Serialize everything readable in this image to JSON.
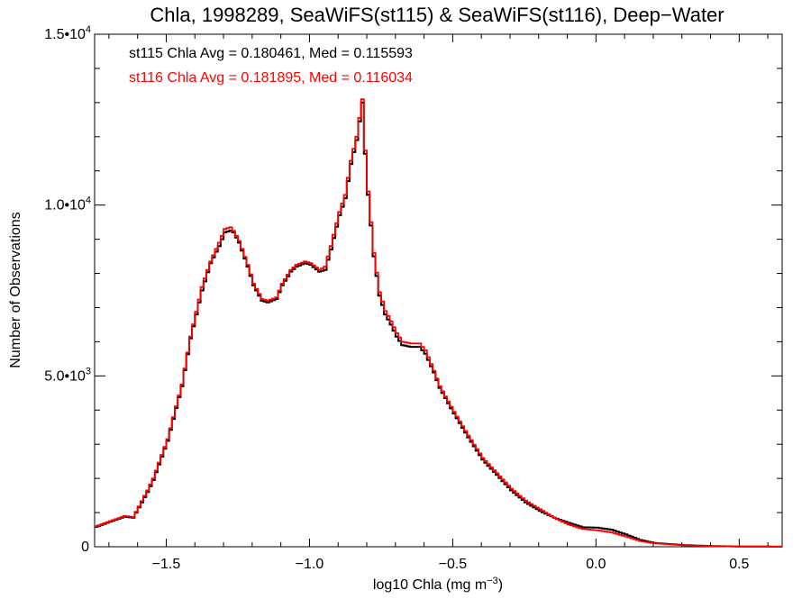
{
  "chart_data": {
    "type": "line",
    "title": "Chla, 1998289, SeaWiFS(st115) & SeaWiFS(st116), Deep−Water",
    "xlabel": "log10 Chla (mg m",
    "xlabel_sup": "−3",
    "xlabel_end": ")",
    "ylabel": "Number of Observations",
    "xlim": [
      -1.75,
      0.65
    ],
    "ylim": [
      0,
      15000
    ],
    "x_ticks": [
      {
        "value": -1.5,
        "label": "−1.5"
      },
      {
        "value": -1.0,
        "label": "−1.0"
      },
      {
        "value": -0.5,
        "label": "−0.5"
      },
      {
        "value": 0.0,
        "label": "0.0"
      },
      {
        "value": 0.5,
        "label": "0.5"
      }
    ],
    "y_ticks": [
      {
        "value": 0,
        "label": "0",
        "sup": ""
      },
      {
        "value": 5000,
        "label": "5.0•10",
        "sup": "3"
      },
      {
        "value": 10000,
        "label": "1.0•10",
        "sup": "4"
      },
      {
        "value": 15000,
        "label": "1.5•10",
        "sup": "4"
      }
    ],
    "annotations": [
      {
        "text": "st115 Chla Avg = 0.180461, Med = 0.115593",
        "color": "#000000"
      },
      {
        "text": "st116 Chla Avg = 0.181895, Med = 0.116034",
        "color": "#ff0000"
      }
    ],
    "grid": false,
    "series": [
      {
        "name": "st115",
        "color": "#000000",
        "x": [
          -1.75,
          -1.7,
          -1.65,
          -1.62,
          -1.6,
          -1.57,
          -1.55,
          -1.5,
          -1.45,
          -1.42,
          -1.38,
          -1.35,
          -1.32,
          -1.3,
          -1.28,
          -1.27,
          -1.25,
          -1.22,
          -1.2,
          -1.17,
          -1.15,
          -1.12,
          -1.1,
          -1.07,
          -1.05,
          -1.02,
          -1.0,
          -0.97,
          -0.95,
          -0.93,
          -0.9,
          -0.88,
          -0.86,
          -0.84,
          -0.83,
          -0.82,
          -0.81,
          -0.8,
          -0.78,
          -0.76,
          -0.74,
          -0.72,
          -0.7,
          -0.68,
          -0.65,
          -0.62,
          -0.6,
          -0.57,
          -0.55,
          -0.5,
          -0.45,
          -0.4,
          -0.35,
          -0.3,
          -0.25,
          -0.2,
          -0.15,
          -0.1,
          -0.05,
          0.0,
          0.05,
          0.1,
          0.15,
          0.2,
          0.3,
          0.4,
          0.5,
          0.65
        ],
        "y": [
          580,
          730,
          880,
          850,
          1150,
          1600,
          1950,
          3100,
          4700,
          6100,
          7500,
          8300,
          8800,
          9200,
          9250,
          9200,
          8900,
          8200,
          7650,
          7200,
          7150,
          7250,
          7650,
          8050,
          8200,
          8300,
          8250,
          8050,
          8100,
          8700,
          9700,
          10200,
          11200,
          11900,
          12450,
          13000,
          11500,
          10300,
          8500,
          7350,
          6800,
          6500,
          6150,
          5900,
          5850,
          5850,
          5650,
          5100,
          4650,
          3900,
          3200,
          2550,
          2100,
          1650,
          1300,
          1050,
          850,
          700,
          570,
          560,
          500,
          360,
          200,
          110,
          50,
          20,
          8,
          2
        ]
      },
      {
        "name": "st116",
        "color": "#ff0000",
        "x": [
          -1.75,
          -1.7,
          -1.65,
          -1.62,
          -1.6,
          -1.57,
          -1.55,
          -1.5,
          -1.45,
          -1.42,
          -1.38,
          -1.35,
          -1.32,
          -1.3,
          -1.28,
          -1.27,
          -1.25,
          -1.22,
          -1.2,
          -1.17,
          -1.15,
          -1.12,
          -1.1,
          -1.07,
          -1.05,
          -1.02,
          -1.0,
          -0.97,
          -0.95,
          -0.93,
          -0.9,
          -0.88,
          -0.86,
          -0.84,
          -0.83,
          -0.82,
          -0.81,
          -0.8,
          -0.78,
          -0.76,
          -0.74,
          -0.72,
          -0.7,
          -0.68,
          -0.65,
          -0.62,
          -0.6,
          -0.57,
          -0.55,
          -0.5,
          -0.45,
          -0.4,
          -0.35,
          -0.3,
          -0.25,
          -0.2,
          -0.15,
          -0.1,
          -0.05,
          0.0,
          0.05,
          0.1,
          0.15,
          0.2,
          0.3,
          0.4,
          0.5,
          0.65
        ],
        "y": [
          600,
          750,
          900,
          870,
          1180,
          1650,
          2000,
          3150,
          4750,
          6150,
          7600,
          8350,
          8900,
          9300,
          9350,
          9250,
          8950,
          8250,
          7700,
          7250,
          7200,
          7300,
          7700,
          8100,
          8250,
          8350,
          8300,
          8100,
          8200,
          8800,
          9800,
          10300,
          11300,
          12000,
          12550,
          13100,
          11600,
          10400,
          8600,
          7450,
          6900,
          6600,
          6250,
          6000,
          5950,
          5950,
          5750,
          5150,
          4700,
          3950,
          3250,
          2600,
          2150,
          1700,
          1350,
          1100,
          850,
          650,
          520,
          480,
          420,
          300,
          170,
          100,
          45,
          18,
          7,
          2
        ]
      }
    ]
  }
}
